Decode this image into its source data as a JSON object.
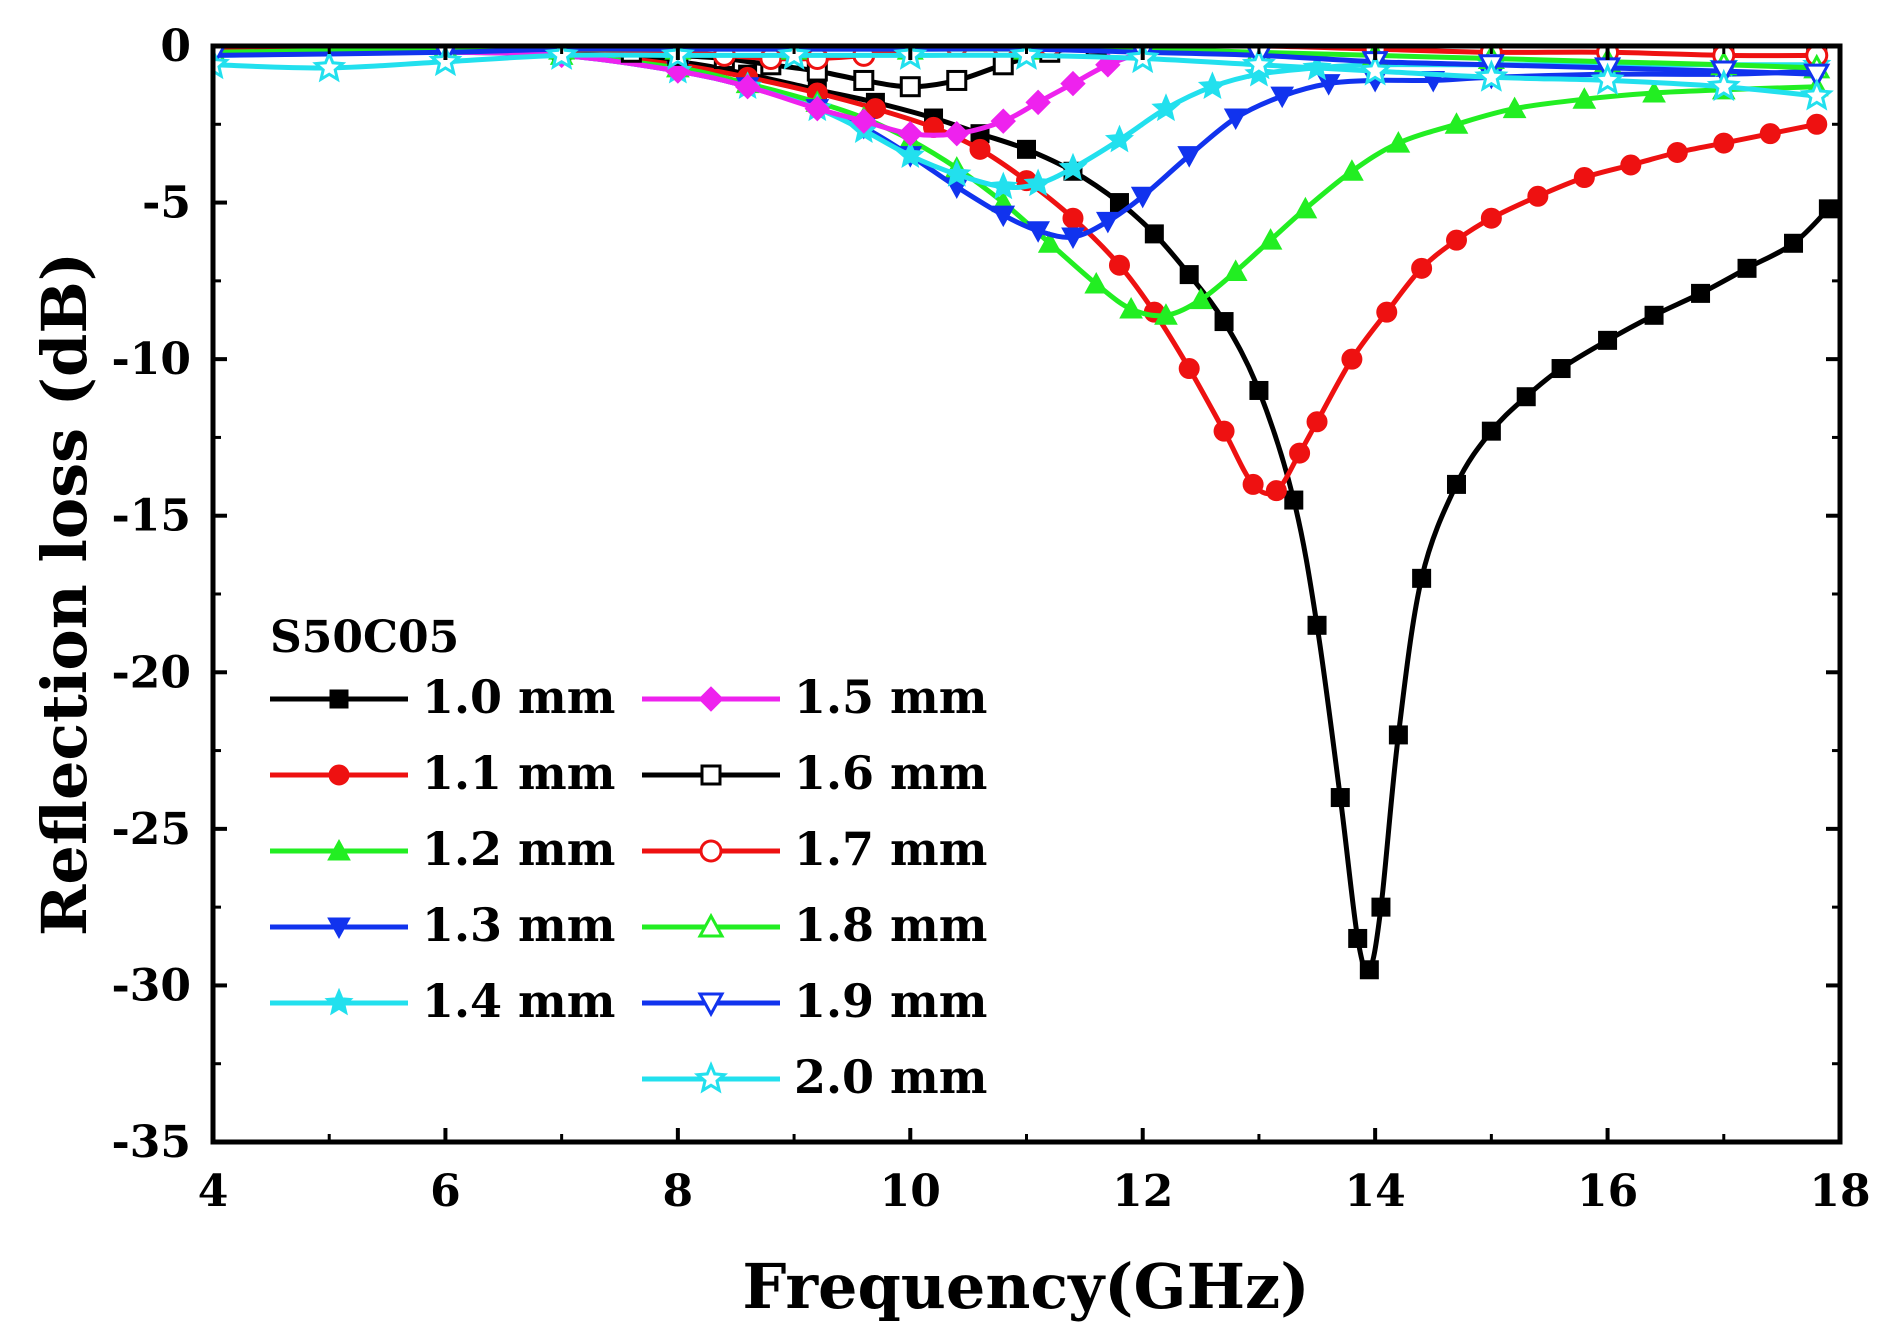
{
  "chart_data": {
    "type": "line",
    "annotation": "S50C05",
    "xlabel": "Frequency(GHz)",
    "ylabel": "Reflection loss (dB)",
    "xlim": [
      4,
      18
    ],
    "ylim": [
      -35,
      0
    ],
    "xticks": [
      "4",
      "6",
      "8",
      "10",
      "12",
      "14",
      "16",
      "18"
    ],
    "yticks": [
      "0",
      "-5",
      "-10",
      "-15",
      "-20",
      "-25",
      "-30",
      "-35"
    ],
    "legend_position": "bottom-left",
    "series": [
      {
        "name": "1.0 mm",
        "color": "#000000",
        "marker": "square-filled",
        "x": [
          4,
          6,
          7,
          8,
          8.6,
          9.2,
          9.7,
          10.2,
          10.6,
          11,
          11.4,
          11.8,
          12.1,
          12.4,
          12.7,
          13,
          13.3,
          13.5,
          13.7,
          13.85,
          13.95,
          14.05,
          14.2,
          14.4,
          14.7,
          15,
          15.3,
          15.6,
          16,
          16.4,
          16.8,
          17.2,
          17.6,
          17.9
        ],
        "y": [
          -0.1,
          -0.1,
          -0.2,
          -0.5,
          -0.9,
          -1.4,
          -1.8,
          -2.3,
          -2.8,
          -3.3,
          -4.0,
          -5.0,
          -6.0,
          -7.3,
          -8.8,
          -11.0,
          -14.5,
          -18.5,
          -24.0,
          -28.5,
          -29.5,
          -27.5,
          -22.0,
          -17.0,
          -14.0,
          -12.3,
          -11.2,
          -10.3,
          -9.4,
          -8.6,
          -7.9,
          -7.1,
          -6.3,
          -5.2
        ]
      },
      {
        "name": "1.1 mm",
        "color": "#ee1111",
        "marker": "circle-filled",
        "x": [
          4,
          6,
          7,
          8,
          8.6,
          9.2,
          9.7,
          10.2,
          10.6,
          11,
          11.4,
          11.8,
          12.1,
          12.4,
          12.7,
          12.95,
          13.15,
          13.35,
          13.5,
          13.8,
          14.1,
          14.4,
          14.7,
          15.0,
          15.4,
          15.8,
          16.2,
          16.6,
          17.0,
          17.4,
          17.8
        ],
        "y": [
          -0.1,
          -0.1,
          -0.2,
          -0.6,
          -1.0,
          -1.5,
          -2.0,
          -2.6,
          -3.3,
          -4.3,
          -5.5,
          -7.0,
          -8.5,
          -10.3,
          -12.3,
          -14.0,
          -14.2,
          -13.0,
          -12.0,
          -10.0,
          -8.5,
          -7.1,
          -6.2,
          -5.5,
          -4.8,
          -4.2,
          -3.8,
          -3.4,
          -3.1,
          -2.8,
          -2.5
        ]
      },
      {
        "name": "1.2 mm",
        "color": "#22ee22",
        "marker": "triangle-up-filled",
        "x": [
          4,
          6,
          7,
          8,
          8.6,
          9.2,
          9.6,
          10,
          10.4,
          10.8,
          11.2,
          11.6,
          11.9,
          12.2,
          12.5,
          12.8,
          13.1,
          13.4,
          13.8,
          14.2,
          14.7,
          15.2,
          15.8,
          16.4,
          17,
          17.8
        ],
        "y": [
          -0.2,
          -0.2,
          -0.3,
          -0.7,
          -1.2,
          -1.8,
          -2.3,
          -3.0,
          -3.9,
          -5.0,
          -6.3,
          -7.6,
          -8.4,
          -8.6,
          -8.1,
          -7.2,
          -6.2,
          -5.2,
          -4.0,
          -3.1,
          -2.5,
          -2.0,
          -1.7,
          -1.5,
          -1.4,
          -1.3
        ]
      },
      {
        "name": "1.3 mm",
        "color": "#1133ee",
        "marker": "triangle-down-filled",
        "x": [
          4,
          6,
          7,
          8,
          8.6,
          9.2,
          9.6,
          10,
          10.4,
          10.8,
          11.1,
          11.4,
          11.7,
          12.0,
          12.4,
          12.8,
          13.2,
          13.6,
          14,
          14.5,
          15,
          16,
          17,
          17.8
        ],
        "y": [
          -0.2,
          -0.2,
          -0.3,
          -0.8,
          -1.3,
          -2.0,
          -2.6,
          -3.5,
          -4.5,
          -5.4,
          -5.9,
          -6.1,
          -5.6,
          -4.8,
          -3.5,
          -2.3,
          -1.6,
          -1.2,
          -1.1,
          -1.1,
          -1.0,
          -0.9,
          -0.9,
          -0.8
        ]
      },
      {
        "name": "1.4 mm",
        "color": "#22e0ee",
        "marker": "star-filled",
        "x": [
          4,
          6,
          7,
          8,
          8.6,
          9.2,
          9.6,
          10,
          10.4,
          10.8,
          11.1,
          11.4,
          11.8,
          12.2,
          12.6,
          13,
          13.5,
          14,
          15,
          16,
          17,
          17.8
        ],
        "y": [
          -0.3,
          -0.2,
          -0.3,
          -0.8,
          -1.3,
          -2.0,
          -2.7,
          -3.5,
          -4.1,
          -4.5,
          -4.4,
          -3.9,
          -3.0,
          -2.0,
          -1.3,
          -0.9,
          -0.7,
          -0.6,
          -0.6,
          -0.6,
          -0.6,
          -0.6
        ]
      },
      {
        "name": "1.5 mm",
        "color": "#ee22ee",
        "marker": "diamond-filled",
        "x": [
          4,
          6,
          7,
          8,
          8.6,
          9.2,
          9.6,
          10,
          10.4,
          10.8,
          11.1,
          11.4,
          11.7,
          12
        ],
        "y": [
          -0.2,
          -0.2,
          -0.3,
          -0.8,
          -1.3,
          -2.0,
          -2.4,
          -2.8,
          -2.8,
          -2.4,
          -1.8,
          -1.2,
          -0.6,
          -0.2
        ]
      },
      {
        "name": "1.6 mm",
        "color": "#000000",
        "marker": "square-open",
        "x": [
          4,
          6,
          7,
          7.6,
          8,
          8.4,
          8.8,
          9.2,
          9.6,
          10,
          10.4,
          10.8,
          11.2,
          11.6,
          12,
          13,
          14,
          15,
          16,
          17,
          17.8
        ],
        "y": [
          -0.1,
          -0.1,
          -0.1,
          -0.2,
          -0.3,
          -0.4,
          -0.6,
          -0.8,
          -1.1,
          -1.3,
          -1.1,
          -0.6,
          -0.2,
          0,
          0,
          0,
          0,
          0,
          0,
          0,
          0
        ]
      },
      {
        "name": "1.7 mm",
        "color": "#ee1111",
        "marker": "circle-open",
        "x": [
          4,
          6,
          7,
          8,
          8.4,
          8.8,
          9.2,
          9.6,
          10,
          10.4,
          10.8,
          11.2,
          12,
          13,
          14,
          15,
          16,
          17,
          17.8
        ],
        "y": [
          -0.1,
          -0.1,
          -0.1,
          -0.2,
          -0.3,
          -0.4,
          -0.4,
          -0.3,
          -0.1,
          0,
          0,
          0,
          0,
          0,
          -0.1,
          -0.2,
          -0.2,
          -0.3,
          -0.3
        ]
      },
      {
        "name": "1.8 mm",
        "color": "#22ee22",
        "marker": "triangle-up-open",
        "x": [
          4,
          6,
          7,
          8,
          9,
          10,
          11,
          12,
          13,
          14,
          15,
          16,
          17,
          17.8
        ],
        "y": [
          -0.2,
          -0.1,
          -0.1,
          -0.1,
          -0.1,
          -0.1,
          -0.1,
          -0.1,
          -0.2,
          -0.3,
          -0.4,
          -0.5,
          -0.6,
          -0.7
        ]
      },
      {
        "name": "1.9 mm",
        "color": "#1133ee",
        "marker": "triangle-down-open",
        "x": [
          4,
          6,
          7,
          8,
          9,
          10,
          11,
          12,
          13,
          14,
          15,
          16,
          17,
          17.8
        ],
        "y": [
          -0.3,
          -0.2,
          -0.1,
          -0.1,
          -0.1,
          -0.1,
          -0.1,
          -0.2,
          -0.3,
          -0.5,
          -0.6,
          -0.7,
          -0.8,
          -0.9
        ]
      },
      {
        "name": "2.0 mm",
        "color": "#22e0ee",
        "marker": "star-open",
        "x": [
          4,
          5,
          6,
          7,
          8,
          9,
          10,
          11,
          12,
          13,
          14,
          15,
          16,
          17,
          17.8
        ],
        "y": [
          -0.6,
          -0.7,
          -0.5,
          -0.3,
          -0.3,
          -0.3,
          -0.3,
          -0.3,
          -0.4,
          -0.6,
          -0.8,
          -1.0,
          -1.1,
          -1.3,
          -1.6
        ]
      }
    ]
  }
}
